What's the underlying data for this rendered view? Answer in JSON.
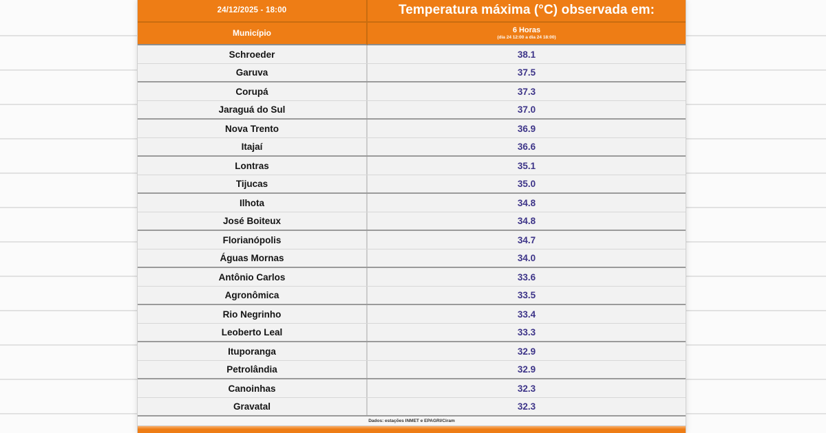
{
  "chart_data": {
    "type": "table",
    "datetime_label": "24/12/2025 - 18:00",
    "title": "Temperatura máxima (°C) observada em:",
    "columns": [
      "Município",
      "6 Horas"
    ],
    "column_subtitle": "(dia 24 12:00 a dia 24 18:00)",
    "categories": [
      "Schroeder",
      "Garuva",
      "Corupá",
      "Jaraguá do Sul",
      "Nova Trento",
      "Itajaí",
      "Lontras",
      "Tijucas",
      "Ilhota",
      "José Boiteux",
      "Florianópolis",
      "Águas Mornas",
      "Antônio Carlos",
      "Agronômica",
      "Rio Negrinho",
      "Leoberto Leal",
      "Ituporanga",
      "Petrolândia",
      "Canoinhas",
      "Gravatal"
    ],
    "values": [
      38.1,
      37.5,
      37.3,
      37.0,
      36.9,
      36.6,
      35.1,
      35.0,
      34.8,
      34.8,
      34.7,
      34.0,
      33.6,
      33.5,
      33.4,
      33.3,
      32.9,
      32.9,
      32.3,
      32.3
    ],
    "unit": "°C",
    "source": "Dados: estações INMET e EPAGRI/Ciram"
  },
  "colors": {
    "header_orange": "#ee7d15",
    "value_text": "#3d3488"
  }
}
